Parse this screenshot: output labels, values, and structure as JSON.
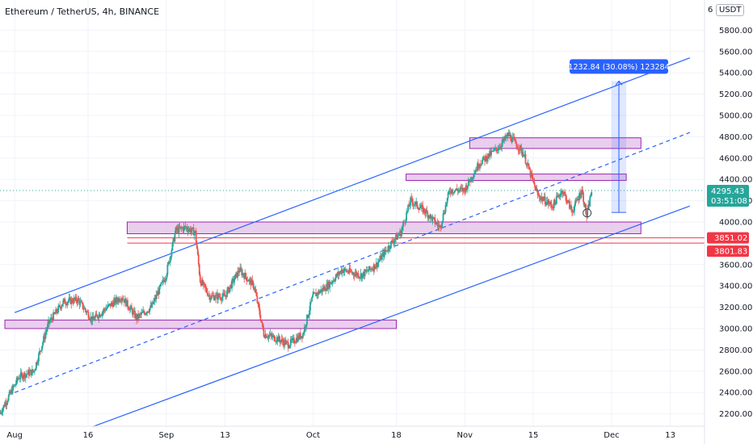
{
  "header": {
    "title": "Ethereum / TetherUS, 4h, BINANCE",
    "unit": "USDT",
    "unit_prefix": "6"
  },
  "colors": {
    "up": "#26a69a",
    "down": "#ef5350",
    "channel": "#2962ff",
    "zone_fill": "#e1bee7",
    "zone_border": "#9c27b0",
    "level": "#f23645",
    "measure": "#2962ff",
    "grid": "#f0f3fa",
    "axis_text": "#131722"
  },
  "chart_data": {
    "type": "candlestick",
    "title": "Ethereum / TetherUS, 4h, BINANCE",
    "symbol": "ETHUSDT",
    "exchange": "BINANCE",
    "interval": "4h",
    "ylim": [
      2100,
      6100
    ],
    "y_ticks": [
      2200,
      2400,
      2600,
      2800,
      3000,
      3200,
      3400,
      3600,
      4000,
      4200,
      4400,
      4600,
      4800,
      5000,
      5200,
      5400,
      5600,
      5800
    ],
    "y_tick_labels": [
      "2200.00",
      "2400.00",
      "2600.00",
      "2800.00",
      "3000.00",
      "3200.00",
      "3400.00",
      "3600.00",
      "4000.00",
      "4200.00",
      "4400.00",
      "4600.00",
      "4800.00",
      "5000.00",
      "5200.00",
      "5400.00",
      "5600.00",
      "5800.00"
    ],
    "x_ticks": [
      "2021-08-01",
      "2021-08-16",
      "2021-09-01",
      "2021-09-13",
      "2021-10-01",
      "2021-10-18",
      "2021-11-01",
      "2021-11-15",
      "2021-12-01",
      "2021-12-13"
    ],
    "x_tick_labels": [
      "Aug",
      "16",
      "Sep",
      "13",
      "Oct",
      "18",
      "Nov",
      "15",
      "Dec",
      "13"
    ],
    "xlim": [
      "2021-07-29",
      "2021-12-20"
    ],
    "price_path": [
      [
        "2021-07-29",
        2200
      ],
      [
        "2021-08-02",
        2550
      ],
      [
        "2021-08-05",
        2600
      ],
      [
        "2021-08-08",
        3050
      ],
      [
        "2021-08-11",
        3250
      ],
      [
        "2021-08-14",
        3270
      ],
      [
        "2021-08-17",
        3080
      ],
      [
        "2021-08-20",
        3200
      ],
      [
        "2021-08-23",
        3300
      ],
      [
        "2021-08-26",
        3100
      ],
      [
        "2021-08-29",
        3200
      ],
      [
        "2021-09-01",
        3500
      ],
      [
        "2021-09-03",
        3920
      ],
      [
        "2021-09-05",
        3950
      ],
      [
        "2021-09-07",
        3900
      ],
      [
        "2021-09-08",
        3450
      ],
      [
        "2021-09-10",
        3300
      ],
      [
        "2021-09-13",
        3300
      ],
      [
        "2021-09-16",
        3550
      ],
      [
        "2021-09-19",
        3400
      ],
      [
        "2021-09-21",
        2950
      ],
      [
        "2021-09-24",
        2900
      ],
      [
        "2021-09-26",
        2850
      ],
      [
        "2021-09-29",
        2950
      ],
      [
        "2021-10-01",
        3300
      ],
      [
        "2021-10-04",
        3400
      ],
      [
        "2021-10-07",
        3550
      ],
      [
        "2021-10-11",
        3500
      ],
      [
        "2021-10-14",
        3600
      ],
      [
        "2021-10-17",
        3800
      ],
      [
        "2021-10-19",
        3900
      ],
      [
        "2021-10-21",
        4200
      ],
      [
        "2021-10-24",
        4100
      ],
      [
        "2021-10-27",
        3950
      ],
      [
        "2021-10-29",
        4300
      ],
      [
        "2021-11-01",
        4300
      ],
      [
        "2021-11-04",
        4550
      ],
      [
        "2021-11-08",
        4700
      ],
      [
        "2021-11-10",
        4820
      ],
      [
        "2021-11-13",
        4650
      ],
      [
        "2021-11-16",
        4250
      ],
      [
        "2021-11-19",
        4150
      ],
      [
        "2021-11-21",
        4300
      ],
      [
        "2021-11-23",
        4100
      ],
      [
        "2021-11-25",
        4300
      ],
      [
        "2021-11-26",
        4050
      ],
      [
        "2021-11-27",
        4295.43
      ]
    ],
    "last_price": 4295.43,
    "last_price_label": "4295.43",
    "countdown": "03:51:08",
    "levels": [
      {
        "value": 3851.02,
        "label": "3851.02"
      },
      {
        "value": 3801.83,
        "label": "3801.83"
      }
    ],
    "zones": [
      {
        "from": "2021-07-30",
        "to": "2021-10-18",
        "low": 3000,
        "high": 3080
      },
      {
        "from": "2021-08-24",
        "to": "2021-12-07",
        "low": 3890,
        "high": 4000
      },
      {
        "from": "2021-10-20",
        "to": "2021-12-04",
        "low": 4390,
        "high": 4450
      },
      {
        "from": "2021-11-02",
        "to": "2021-12-07",
        "low": 4690,
        "high": 4790
      }
    ],
    "channel_lines": [
      {
        "style": "solid",
        "from": [
          "2021-08-01",
          3150
        ],
        "to": [
          "2021-12-17",
          5540
        ]
      },
      {
        "style": "dashed",
        "from": [
          "2021-08-01",
          2400
        ],
        "to": [
          "2021-12-17",
          4840
        ]
      },
      {
        "style": "solid",
        "from": [
          "2021-08-17",
          2080
        ],
        "to": [
          "2021-12-17",
          4150
        ]
      }
    ],
    "measure": {
      "from": "2021-12-01",
      "to": "2021-12-04",
      "low": 4090,
      "high": 5322.84,
      "label": "1232.84 (30.08%) 123284"
    },
    "marker": {
      "date": "2021-11-26",
      "value": 4085
    }
  }
}
